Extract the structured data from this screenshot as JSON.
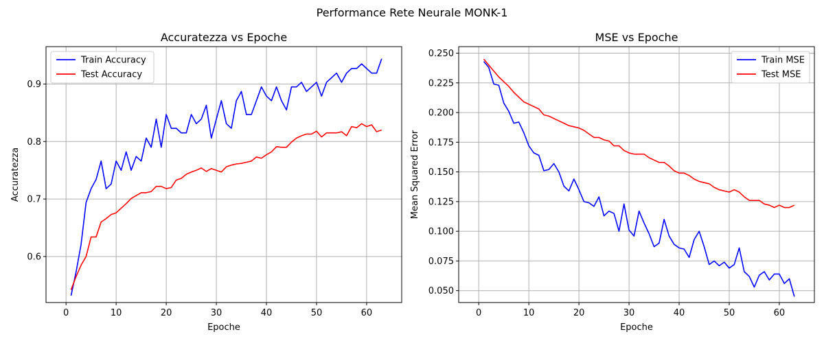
{
  "figure": {
    "title": "Performance Rete Neurale MONK-1"
  },
  "chart_data": [
    {
      "type": "line",
      "title": "Accuratezza vs Epoche",
      "xlabel": "Epoche",
      "ylabel": "Accuratezza",
      "xlim": [
        -4,
        67
      ],
      "ylim": [
        0.52,
        0.965
      ],
      "xticks": [
        0,
        10,
        20,
        30,
        40,
        50,
        60
      ],
      "xtick_labels": [
        "0",
        "10",
        "20",
        "30",
        "40",
        "50",
        "60"
      ],
      "yticks": [
        0.6,
        0.7,
        0.8,
        0.9
      ],
      "ytick_labels": [
        "0.6",
        "0.7",
        "0.8",
        "0.9"
      ],
      "grid": true,
      "legend": "top-left",
      "x_start": 1,
      "series": [
        {
          "name": "Train Accuracy",
          "color": "#0000ff",
          "values": [
            0.532,
            0.573,
            0.621,
            0.694,
            0.718,
            0.734,
            0.766,
            0.718,
            0.726,
            0.766,
            0.75,
            0.782,
            0.75,
            0.774,
            0.766,
            0.806,
            0.79,
            0.839,
            0.79,
            0.847,
            0.823,
            0.823,
            0.815,
            0.815,
            0.847,
            0.831,
            0.839,
            0.863,
            0.806,
            0.839,
            0.871,
            0.831,
            0.823,
            0.871,
            0.887,
            0.847,
            0.847,
            0.871,
            0.895,
            0.879,
            0.871,
            0.895,
            0.871,
            0.855,
            0.895,
            0.895,
            0.903,
            0.887,
            0.895,
            0.903,
            0.879,
            0.903,
            0.911,
            0.919,
            0.903,
            0.919,
            0.927,
            0.927,
            0.935,
            0.927,
            0.919,
            0.919,
            0.944
          ]
        },
        {
          "name": "Test Accuracy",
          "color": "#ff0000",
          "values": [
            0.542,
            0.565,
            0.585,
            0.6,
            0.634,
            0.634,
            0.66,
            0.666,
            0.673,
            0.676,
            0.684,
            0.692,
            0.701,
            0.706,
            0.711,
            0.711,
            0.713,
            0.722,
            0.722,
            0.718,
            0.72,
            0.733,
            0.736,
            0.743,
            0.747,
            0.75,
            0.754,
            0.748,
            0.753,
            0.75,
            0.747,
            0.756,
            0.759,
            0.761,
            0.762,
            0.764,
            0.766,
            0.773,
            0.771,
            0.777,
            0.782,
            0.791,
            0.79,
            0.79,
            0.799,
            0.806,
            0.81,
            0.813,
            0.813,
            0.818,
            0.808,
            0.815,
            0.815,
            0.815,
            0.817,
            0.81,
            0.826,
            0.824,
            0.831,
            0.826,
            0.829,
            0.817,
            0.82
          ]
        }
      ]
    },
    {
      "type": "line",
      "title": "MSE vs Epoche",
      "xlabel": "Epoche",
      "ylabel": "Mean Squared Error",
      "xlim": [
        -4,
        67
      ],
      "ylim": [
        0.04,
        0.2555
      ],
      "xticks": [
        0,
        10,
        20,
        30,
        40,
        50,
        60
      ],
      "xtick_labels": [
        "0",
        "10",
        "20",
        "30",
        "40",
        "50",
        "60"
      ],
      "yticks": [
        0.05,
        0.075,
        0.1,
        0.125,
        0.15,
        0.175,
        0.2,
        0.225,
        0.25
      ],
      "ytick_labels": [
        "0.050",
        "0.075",
        "0.100",
        "0.125",
        "0.150",
        "0.175",
        "0.200",
        "0.225",
        "0.250"
      ],
      "grid": true,
      "legend": "top-right",
      "x_start": 1,
      "series": [
        {
          "name": "Train MSE",
          "color": "#0000ff",
          "values": [
            0.243,
            0.238,
            0.224,
            0.223,
            0.208,
            0.201,
            0.191,
            0.192,
            0.183,
            0.172,
            0.166,
            0.164,
            0.151,
            0.152,
            0.157,
            0.15,
            0.138,
            0.134,
            0.144,
            0.135,
            0.125,
            0.124,
            0.121,
            0.129,
            0.113,
            0.117,
            0.115,
            0.1,
            0.123,
            0.101,
            0.096,
            0.117,
            0.107,
            0.098,
            0.087,
            0.09,
            0.11,
            0.096,
            0.089,
            0.086,
            0.085,
            0.078,
            0.093,
            0.1,
            0.087,
            0.072,
            0.075,
            0.071,
            0.074,
            0.069,
            0.072,
            0.086,
            0.066,
            0.062,
            0.053,
            0.063,
            0.066,
            0.059,
            0.064,
            0.064,
            0.056,
            0.06,
            0.045
          ]
        },
        {
          "name": "Test MSE",
          "color": "#ff0000",
          "values": [
            0.245,
            0.24,
            0.235,
            0.23,
            0.226,
            0.222,
            0.217,
            0.213,
            0.209,
            0.207,
            0.205,
            0.203,
            0.198,
            0.197,
            0.195,
            0.193,
            0.191,
            0.189,
            0.188,
            0.187,
            0.185,
            0.182,
            0.179,
            0.179,
            0.177,
            0.176,
            0.172,
            0.172,
            0.168,
            0.166,
            0.165,
            0.165,
            0.165,
            0.162,
            0.16,
            0.158,
            0.158,
            0.155,
            0.151,
            0.149,
            0.149,
            0.147,
            0.144,
            0.142,
            0.141,
            0.14,
            0.137,
            0.135,
            0.134,
            0.133,
            0.135,
            0.133,
            0.129,
            0.126,
            0.126,
            0.126,
            0.123,
            0.122,
            0.12,
            0.122,
            0.12,
            0.12,
            0.122
          ]
        }
      ]
    }
  ]
}
